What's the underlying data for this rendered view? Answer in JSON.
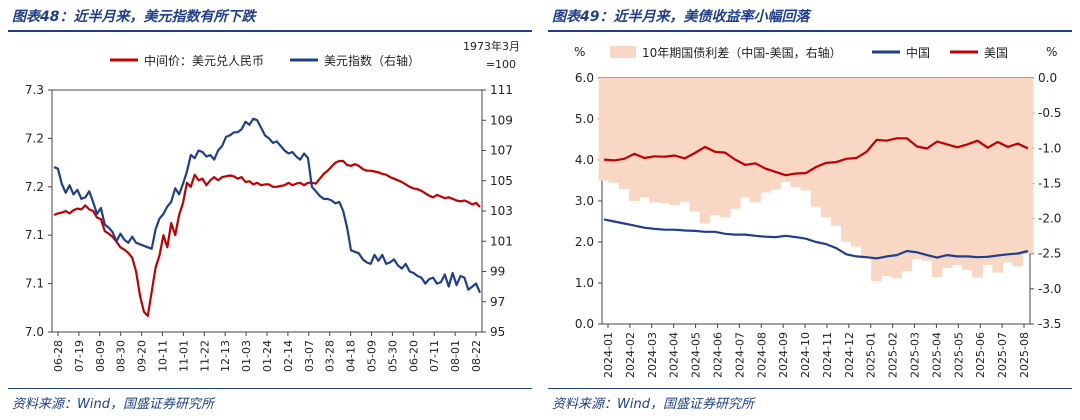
{
  "panels": [
    {
      "title": "图表48：近半月来，美元指数有所下跌",
      "source": "资料来源：Wind，国盛证券研究所"
    },
    {
      "title": "图表49：近半月来，美债收益率小幅回落",
      "source": "资料来源：Wind，国盛证券研究所"
    }
  ],
  "chart_data": [
    {
      "type": "line",
      "title": "",
      "legend": [
        "中间价：美元兑人民币",
        "美元指数（右轴）"
      ],
      "legend_placement": "top",
      "right_axis_note": [
        "1973年3月",
        "=100"
      ],
      "x_ticks": [
        "06-28",
        "07-19",
        "08-09",
        "08-30",
        "09-20",
        "10-11",
        "11-01",
        "11-22",
        "12-13",
        "01-03",
        "01-24",
        "02-14",
        "03-07",
        "03-28",
        "04-18",
        "05-09",
        "05-30",
        "06-20",
        "07-11",
        "08-01",
        "08-22"
      ],
      "y_left_ticks": [
        "7.0",
        "7.1",
        "7.1",
        "7.2",
        "7.2",
        "7.3"
      ],
      "y_left_range": [
        7.0,
        7.3
      ],
      "y_right_ticks": [
        "95",
        "97",
        "99",
        "101",
        "103",
        "105",
        "107",
        "109",
        "111"
      ],
      "y_right_range": [
        95,
        111
      ],
      "series": [
        {
          "name": "中间价：美元兑人民币",
          "axis": "left",
          "color": "#c00000",
          "values": [
            7.145,
            7.147,
            7.148,
            7.15,
            7.147,
            7.151,
            7.153,
            7.152,
            7.157,
            7.152,
            7.15,
            7.142,
            7.14,
            7.125,
            7.122,
            7.118,
            7.112,
            7.105,
            7.102,
            7.098,
            7.092,
            7.075,
            7.045,
            7.025,
            7.02,
            7.05,
            7.08,
            7.095,
            7.12,
            7.105,
            7.135,
            7.12,
            7.145,
            7.16,
            7.185,
            7.18,
            7.195,
            7.188,
            7.19,
            7.182,
            7.188,
            7.192,
            7.188,
            7.192,
            7.193,
            7.194,
            7.193,
            7.19,
            7.192,
            7.186,
            7.187,
            7.183,
            7.185,
            7.182,
            7.183,
            7.183,
            7.18,
            7.18,
            7.181,
            7.182,
            7.185,
            7.182,
            7.184,
            7.185,
            7.182,
            7.185,
            7.185,
            7.184,
            7.19,
            7.196,
            7.2,
            7.205,
            7.21,
            7.212,
            7.212,
            7.207,
            7.206,
            7.208,
            7.206,
            7.202,
            7.2,
            7.2,
            7.199,
            7.198,
            7.196,
            7.195,
            7.192,
            7.19,
            7.188,
            7.186,
            7.183,
            7.18,
            7.178,
            7.177,
            7.175,
            7.172,
            7.169,
            7.167,
            7.17,
            7.168,
            7.166,
            7.167,
            7.165,
            7.163,
            7.162,
            7.163,
            7.161,
            7.158,
            7.16,
            7.155
          ]
        },
        {
          "name": "美元指数（右轴）",
          "axis": "right",
          "color": "#1f3e8c",
          "values": [
            105.9,
            105.8,
            104.8,
            104.2,
            104.7,
            104.1,
            104.4,
            103.8,
            103.9,
            104.3,
            103.6,
            102.8,
            103.2,
            102.1,
            101.9,
            101.6,
            101.0,
            101.5,
            101.1,
            100.9,
            101.3,
            100.9,
            100.8,
            100.7,
            100.6,
            100.5,
            101.8,
            102.5,
            102.8,
            103.3,
            103.6,
            104.5,
            104.1,
            104.8,
            105.6,
            106.7,
            106.5,
            107.0,
            106.9,
            106.6,
            106.7,
            106.4,
            107.0,
            107.3,
            107.9,
            108.0,
            108.2,
            108.2,
            108.4,
            108.9,
            108.7,
            109.1,
            109.0,
            108.5,
            108.0,
            107.8,
            107.5,
            107.6,
            107.3,
            107.0,
            106.8,
            106.9,
            106.6,
            106.4,
            106.8,
            106.5,
            104.6,
            104.3,
            104.0,
            103.8,
            103.8,
            103.7,
            103.5,
            103.6,
            103.0,
            101.9,
            100.4,
            100.3,
            100.2,
            99.8,
            99.6,
            99.5,
            100.1,
            99.7,
            100.1,
            99.5,
            99.6,
            99.8,
            99.4,
            99.2,
            99.5,
            99.0,
            98.9,
            98.7,
            98.6,
            98.2,
            98.5,
            98.6,
            98.2,
            98.3,
            98.8,
            98.0,
            98.9,
            98.1,
            98.7,
            98.6,
            97.8,
            98.0,
            98.2,
            97.6
          ]
        }
      ]
    },
    {
      "type": "line",
      "title": "",
      "legend": [
        "10年期国债利差（中国-美国，右轴）",
        "中国",
        "美国"
      ],
      "legend_placement": "top",
      "y_left_unit": "%",
      "y_right_unit": "%",
      "x_ticks": [
        "2024-01",
        "2024-02",
        "2024-03",
        "2024-04",
        "2024-05",
        "2024-06",
        "2024-07",
        "2024-08",
        "2024-09",
        "2024-10",
        "2024-11",
        "2024-12",
        "2025-01",
        "2025-02",
        "2025-03",
        "2025-04",
        "2025-05",
        "2025-06",
        "2025-07",
        "2025-08"
      ],
      "y_left_ticks": [
        "0.0",
        "1.0",
        "2.0",
        "3.0",
        "4.0",
        "5.0",
        "6.0"
      ],
      "y_left_range": [
        0,
        6
      ],
      "y_right_ticks": [
        "0.0",
        "-0.5",
        "-1.0",
        "-1.5",
        "-2.0",
        "-2.5",
        "-3.0",
        "-3.5"
      ],
      "y_right_range": [
        -3.5,
        0
      ],
      "series": [
        {
          "name": "10年期国债利差（中国-美国，右轴）",
          "axis": "right",
          "color": "#f8d7c4",
          "kind": "area",
          "values": [
            -1.46,
            -1.49,
            -1.58,
            -1.75,
            -1.7,
            -1.77,
            -1.78,
            -1.81,
            -1.76,
            -1.9,
            -2.07,
            -1.95,
            -1.98,
            -1.86,
            -1.7,
            -1.77,
            -1.63,
            -1.59,
            -1.48,
            -1.55,
            -1.6,
            -1.83,
            -1.98,
            -2.1,
            -2.33,
            -2.4,
            -2.57,
            -2.89,
            -2.82,
            -2.85,
            -2.75,
            -2.58,
            -2.6,
            -2.83,
            -2.7,
            -2.66,
            -2.73,
            -2.84,
            -2.66,
            -2.77,
            -2.62,
            -2.68,
            -2.5
          ]
        },
        {
          "name": "中国",
          "axis": "left",
          "color": "#1f3e8c",
          "values": [
            2.55,
            2.5,
            2.45,
            2.4,
            2.35,
            2.32,
            2.3,
            2.3,
            2.28,
            2.27,
            2.25,
            2.25,
            2.2,
            2.18,
            2.18,
            2.15,
            2.13,
            2.12,
            2.15,
            2.12,
            2.08,
            2.0,
            1.95,
            1.85,
            1.7,
            1.65,
            1.63,
            1.6,
            1.65,
            1.68,
            1.78,
            1.75,
            1.68,
            1.62,
            1.68,
            1.65,
            1.65,
            1.63,
            1.64,
            1.67,
            1.7,
            1.72,
            1.78
          ]
        },
        {
          "name": "美国",
          "axis": "left",
          "color": "#c00000",
          "values": [
            4.01,
            3.99,
            4.03,
            4.15,
            4.05,
            4.09,
            4.08,
            4.11,
            4.04,
            4.17,
            4.32,
            4.2,
            4.18,
            4.01,
            3.88,
            3.92,
            3.79,
            3.71,
            3.63,
            3.67,
            3.68,
            3.83,
            3.93,
            3.95,
            4.03,
            4.05,
            4.2,
            4.49,
            4.47,
            4.53,
            4.53,
            4.33,
            4.28,
            4.45,
            4.38,
            4.31,
            4.38,
            4.47,
            4.3,
            4.44,
            4.32,
            4.4,
            4.28
          ]
        }
      ]
    }
  ]
}
